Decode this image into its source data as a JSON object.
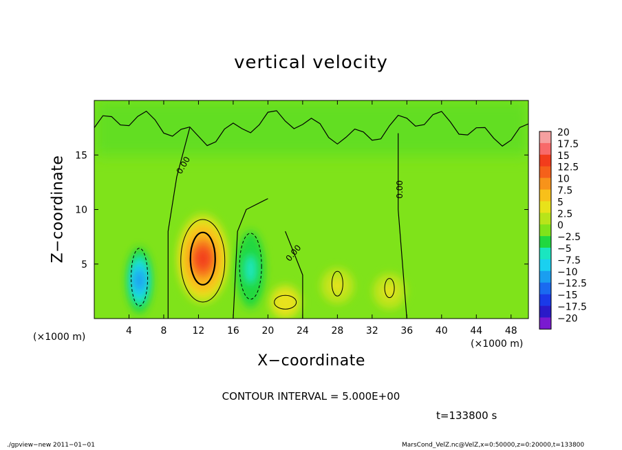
{
  "chart_data": {
    "type": "heatmap",
    "title": "vertical velocity",
    "xlabel": "X−coordinate",
    "ylabel": "Z−coordinate",
    "x_unit_left": "(×1000 m)",
    "x_unit_right": "(×1000 m)",
    "xlim": [
      0,
      50
    ],
    "ylim": [
      0,
      20
    ],
    "xticks": [
      4,
      8,
      12,
      16,
      20,
      24,
      28,
      32,
      36,
      40,
      44,
      48
    ],
    "xtick_labels": [
      "4",
      "8",
      "12",
      "16",
      "20",
      "24",
      "28",
      "32",
      "36",
      "40",
      "44",
      "48"
    ],
    "yticks": [
      5,
      10,
      15
    ],
    "ytick_labels": [
      "5",
      "10",
      "15"
    ],
    "colorbar": {
      "levels": [
        20,
        17.5,
        15,
        12.5,
        10,
        7.5,
        5,
        2.5,
        0,
        -2.5,
        -5,
        -7.5,
        -10,
        -12.5,
        -15,
        -17.5,
        -20
      ],
      "labels": [
        "20",
        "17.5",
        "15",
        "12.5",
        "10",
        "7.5",
        "5",
        "2.5",
        "0",
        "−2.5",
        "−5",
        "−7.5",
        "−10",
        "−12.5",
        "−15",
        "−17.5",
        "−20"
      ],
      "colors": [
        "#f5a0a0",
        "#f86a6a",
        "#f23c1c",
        "#f5611a",
        "#f7931a",
        "#f8c01a",
        "#e8e21a",
        "#b8e41a",
        "#7fe31a",
        "#20d840",
        "#1ae6c0",
        "#1ad0f0",
        "#1a9ef0",
        "#1a6af0",
        "#1a3ae8",
        "#2a1ac8",
        "#7a1ad0"
      ]
    },
    "contour_labels": [
      "0.00",
      "0.00",
      "0.00"
    ],
    "features": [
      {
        "name": "updraft",
        "x": 12.5,
        "z": 5.5,
        "w": 17
      },
      {
        "name": "downdraft",
        "x": 5.2,
        "z": 3.5,
        "w": -11
      },
      {
        "name": "downdraft",
        "x": 18,
        "z": 4.5,
        "w": -5
      },
      {
        "name": "weak updraft",
        "x": 22,
        "z": 1.5,
        "w": 7
      },
      {
        "name": "weak updraft",
        "x": 28,
        "z": 3,
        "w": 5
      },
      {
        "name": "weak updraft",
        "x": 34,
        "z": 2.5,
        "w": 5
      }
    ],
    "contour_interval": "CONTOUR INTERVAL = 5.000E+00",
    "time_label": "t=133800 s"
  },
  "footer": {
    "left": "./gpview−new  2011−01−01",
    "right": "MarsCond_VelZ.nc@VelZ,x=0:50000,z=0:20000,t=133800"
  }
}
